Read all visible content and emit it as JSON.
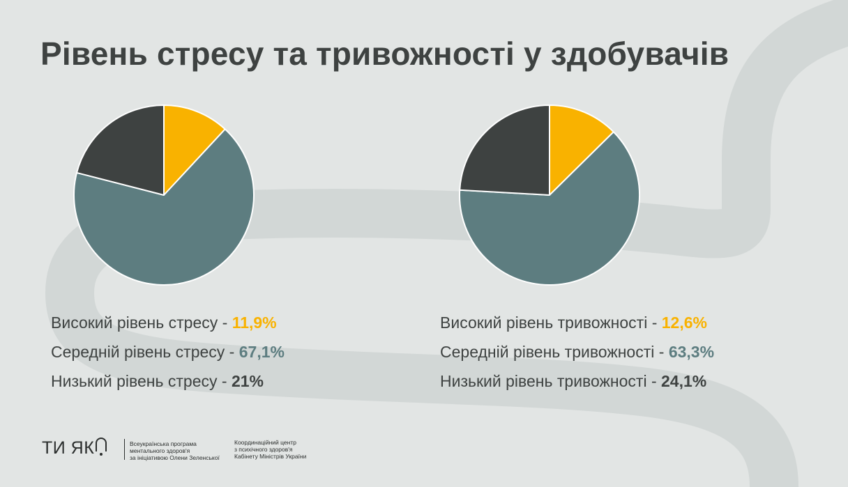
{
  "title": "Рівень стресу та тривожності у здобувачів",
  "colors": {
    "background": "#e2e5e4",
    "high": "#f9b200",
    "medium": "#5d7d80",
    "low": "#3e4241",
    "text": "#3e4241"
  },
  "chart_data": [
    {
      "type": "pie",
      "title": "Рівень стресу",
      "slices": [
        {
          "label": "Високий рівень стресу",
          "value": 11.9,
          "display": "11,9%",
          "color": "#f9b200"
        },
        {
          "label": "Середній рівень стресу",
          "value": 67.1,
          "display": "67,1%",
          "color": "#5d7d80"
        },
        {
          "label": "Низький рівень стресу",
          "value": 21,
          "display": "21%",
          "color": "#3e4241"
        }
      ]
    },
    {
      "type": "pie",
      "title": "Рівень тривожності",
      "slices": [
        {
          "label": "Високий рівень тривожності",
          "value": 12.6,
          "display": "12,6%",
          "color": "#f9b200"
        },
        {
          "label": "Середній рівень тривожності",
          "value": 63.3,
          "display": "63,3%",
          "color": "#5d7d80"
        },
        {
          "label": "Низький рівень тривожності",
          "value": 24.1,
          "display": "24,1%",
          "color": "#3e4241"
        }
      ]
    }
  ],
  "footer": {
    "brand": "ТИ ЯК",
    "program_lines": [
      "Всеукраїнська програма",
      "ментального здоров'я",
      "за ініціативою Олени Зеленської"
    ],
    "center_lines": [
      "Координаційний центр",
      "з психічного здоров'я",
      "Кабінету Міністрів України"
    ]
  }
}
